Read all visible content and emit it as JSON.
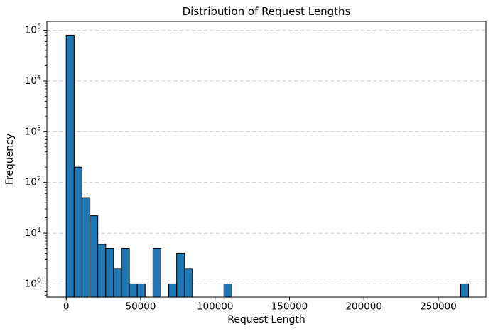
{
  "chart_data": {
    "type": "bar",
    "subtype": "histogram",
    "title": "Distribution of Request Lengths",
    "xlabel": "Request Length",
    "ylabel": "Frequency",
    "yscale": "log",
    "grid": {
      "axis": "y",
      "linestyle": "dashed",
      "color": "#c9c9c9"
    },
    "bar_color": "#1f77b4",
    "bar_edge_color": "#000000",
    "xlim": [
      -13000,
      282000
    ],
    "ylim": [
      0.55,
      150000
    ],
    "x_ticks": [
      0,
      50000,
      100000,
      150000,
      200000,
      250000
    ],
    "x_tick_labels": [
      "0",
      "50000",
      "100000",
      "150000",
      "200000",
      "250000"
    ],
    "y_tick_exponents": [
      0,
      1,
      2,
      3,
      4,
      5
    ],
    "y_tick_base": "10",
    "bin_start": 0,
    "bin_width": 5300,
    "bin_counts": [
      80000,
      200,
      50,
      22,
      6,
      5,
      2,
      5,
      1,
      1,
      0,
      5,
      0,
      1,
      4,
      2,
      0,
      0,
      0,
      0,
      1,
      0,
      0,
      0,
      0,
      0,
      0,
      0,
      0,
      0,
      0,
      0,
      0,
      0,
      0,
      0,
      0,
      0,
      0,
      0,
      0,
      0,
      0,
      0,
      0,
      0,
      0,
      0,
      0,
      0,
      1
    ]
  }
}
